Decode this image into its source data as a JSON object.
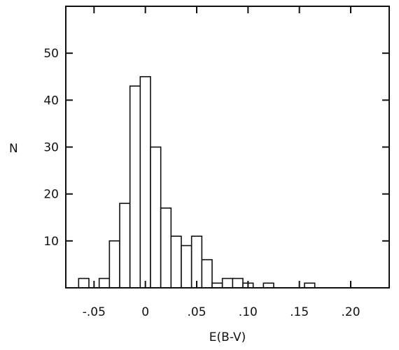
{
  "chart_data": {
    "type": "bar",
    "title": "",
    "xlabel": "E(B-V)",
    "ylabel": "N",
    "xlim": [
      -0.0775,
      0.2375
    ],
    "ylim": [
      0,
      60
    ],
    "bin_width": 0.01,
    "x_ticks": [
      -0.05,
      0,
      0.05,
      0.1,
      0.15,
      0.2
    ],
    "x_tick_labels": [
      "-.05",
      "0",
      ".05",
      ".10",
      ".15",
      ".20"
    ],
    "y_ticks": [
      10,
      20,
      30,
      40,
      50
    ],
    "y_tick_labels": [
      "10",
      "20",
      "30",
      "40",
      "50"
    ],
    "grid": false,
    "categories": [
      -0.06,
      -0.04,
      -0.03,
      -0.02,
      -0.01,
      0.0,
      0.01,
      0.02,
      0.03,
      0.04,
      0.05,
      0.06,
      0.07,
      0.08,
      0.09,
      0.1,
      0.12,
      0.16
    ],
    "values": [
      2,
      2,
      10,
      18,
      43,
      45,
      30,
      17,
      11,
      9,
      11,
      6,
      1,
      2,
      2,
      1,
      1,
      1
    ]
  }
}
